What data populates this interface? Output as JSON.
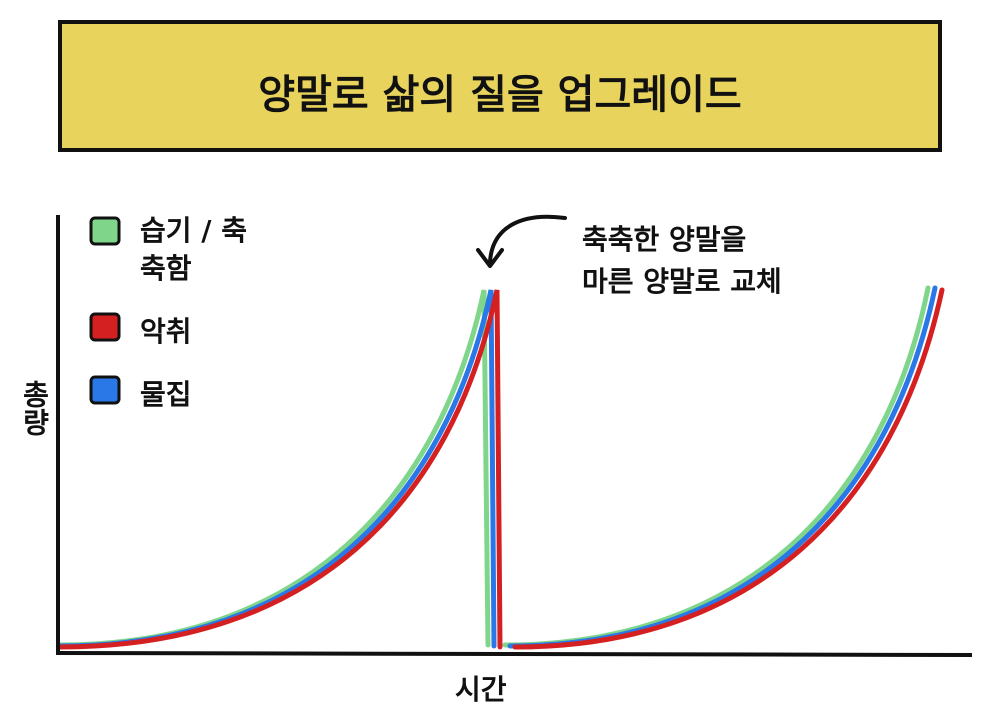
{
  "header": {
    "title": "양말로 삶의 질을 업그레이드"
  },
  "legend": [
    {
      "label": "습기 / 축축함"
    },
    {
      "label": "악취"
    },
    {
      "label": "물집"
    }
  ],
  "annotation": {
    "lines": [
      "축축한 양말을",
      "마른 양말로 교체"
    ]
  },
  "axes": {
    "y_label": "총량",
    "x_label": "시간"
  }
}
